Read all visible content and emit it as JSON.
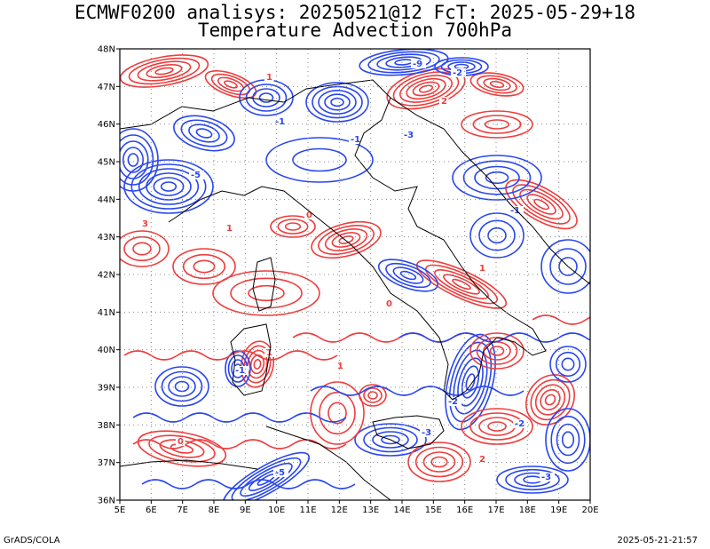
{
  "title_line1": "ECMWF0200 analisys: 20250521@12 FcT: 2025-05-29+18",
  "title_line2": "Temperature Advection 700hPa",
  "footer_left": "GrADS/COLA",
  "footer_right": "2025-05-21-21:57",
  "lat_labels": [
    "48N",
    "47N",
    "46N",
    "45N",
    "44N",
    "43N",
    "42N",
    "41N",
    "40N",
    "39N",
    "38N",
    "37N",
    "36N"
  ],
  "lon_labels": [
    "5E",
    "6E",
    "7E",
    "8E",
    "9E",
    "10E",
    "11E",
    "12E",
    "13E",
    "14E",
    "15E",
    "16E",
    "17E",
    "18E",
    "19E",
    "20E"
  ],
  "colors": {
    "warm": "#f03c3c",
    "cold": "#2846f0",
    "coast": "#000000",
    "grid": "#888888"
  },
  "contour_labels": [
    "-9",
    "-5",
    "-3",
    "-2",
    "-1",
    "0",
    "1",
    "2",
    "3",
    "5"
  ]
}
